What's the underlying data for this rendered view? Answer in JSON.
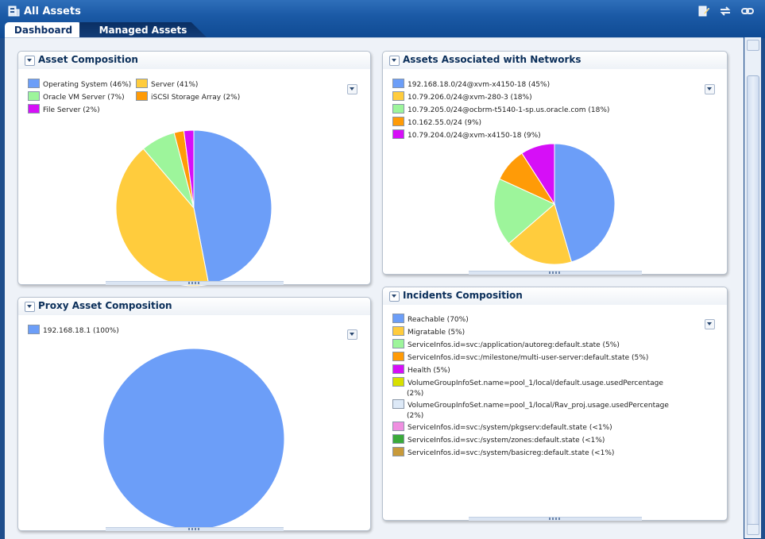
{
  "window": {
    "title": "All Assets"
  },
  "tabs": [
    {
      "label": "Dashboard"
    },
    {
      "label": "Managed Assets"
    }
  ],
  "panels": {
    "asset_composition": {
      "title": "Asset Composition",
      "legend": [
        "Operating System (46%)",
        "Server (41%)",
        "Oracle VM Server (7%)",
        "iSCSI Storage Array (2%)",
        "File Server (2%)"
      ]
    },
    "assets_networks": {
      "title": "Assets Associated with Networks",
      "legend": [
        "192.168.18.0/24@xvm-x4150-18 (45%)",
        "10.79.206.0/24@xvm-280-3 (18%)",
        "10.79.205.0/24@ocbrm-t5140-1-sp.us.oracle.com (18%)",
        "10.162.55.0/24 (9%)",
        "10.79.204.0/24@xvm-x4150-18 (9%)"
      ]
    },
    "proxy_asset_composition": {
      "title": "Proxy Asset Composition",
      "legend": [
        "192.168.18.1 (100%)"
      ]
    },
    "incidents_composition": {
      "title": "Incidents Composition",
      "legend": [
        "Reachable (70%)",
        "Migratable (5%)",
        "ServiceInfos.id=svc:/application/autoreg:default.state (5%)",
        "ServiceInfos.id=svc:/milestone/multi-user-server:default.state (5%)",
        "Health (5%)",
        "VolumeGroupInfoSet.name=pool_1/local/default.usage.usedPercentage",
        "(2%)",
        "VolumeGroupInfoSet.name=pool_1/local/Rav_proj.usage.usedPercentage",
        "(2%)",
        "ServiceInfos.id=svc:/system/pkgserv:default.state (<1%)",
        "ServiceInfos.id=svc:/system/zones:default.state (<1%)",
        "ServiceInfos.id=svc:/system/basicreg:default.state (<1%)"
      ]
    }
  },
  "chart_data": [
    {
      "type": "pie",
      "title": "Asset Composition",
      "categories": [
        "Operating System",
        "Server",
        "Oracle VM Server",
        "iSCSI Storage Array",
        "File Server"
      ],
      "values": [
        46,
        41,
        7,
        2,
        2
      ],
      "colors": [
        "#6c9ef8",
        "#ffcc3d",
        "#9df59b",
        "#ff9b07",
        "#d60ff7"
      ],
      "legend": "top-left"
    },
    {
      "type": "pie",
      "title": "Assets Associated with Networks",
      "categories": [
        "192.168.18.0/24@xvm-x4150-18",
        "10.79.206.0/24@xvm-280-3",
        "10.79.205.0/24@ocbrm-t5140-1-sp.us.oracle.com",
        "10.162.55.0/24",
        "10.79.204.0/24@xvm-x4150-18"
      ],
      "values": [
        45,
        18,
        18,
        9,
        9
      ],
      "colors": [
        "#6c9ef8",
        "#ffcc3d",
        "#9df59b",
        "#ff9b07",
        "#d60ff7"
      ],
      "legend": "top-left"
    },
    {
      "type": "pie",
      "title": "Proxy Asset Composition",
      "categories": [
        "192.168.18.1"
      ],
      "values": [
        100
      ],
      "colors": [
        "#6c9ef8"
      ],
      "legend": "top-left"
    }
  ],
  "incident_colors": [
    "#6c9ef8",
    "#ffcc3d",
    "#9df59b",
    "#ff9b07",
    "#d60ff7",
    "#d8e000",
    "#dde9f7",
    "#ef8fe0",
    "#3aaa3a",
    "#c89a3a"
  ]
}
